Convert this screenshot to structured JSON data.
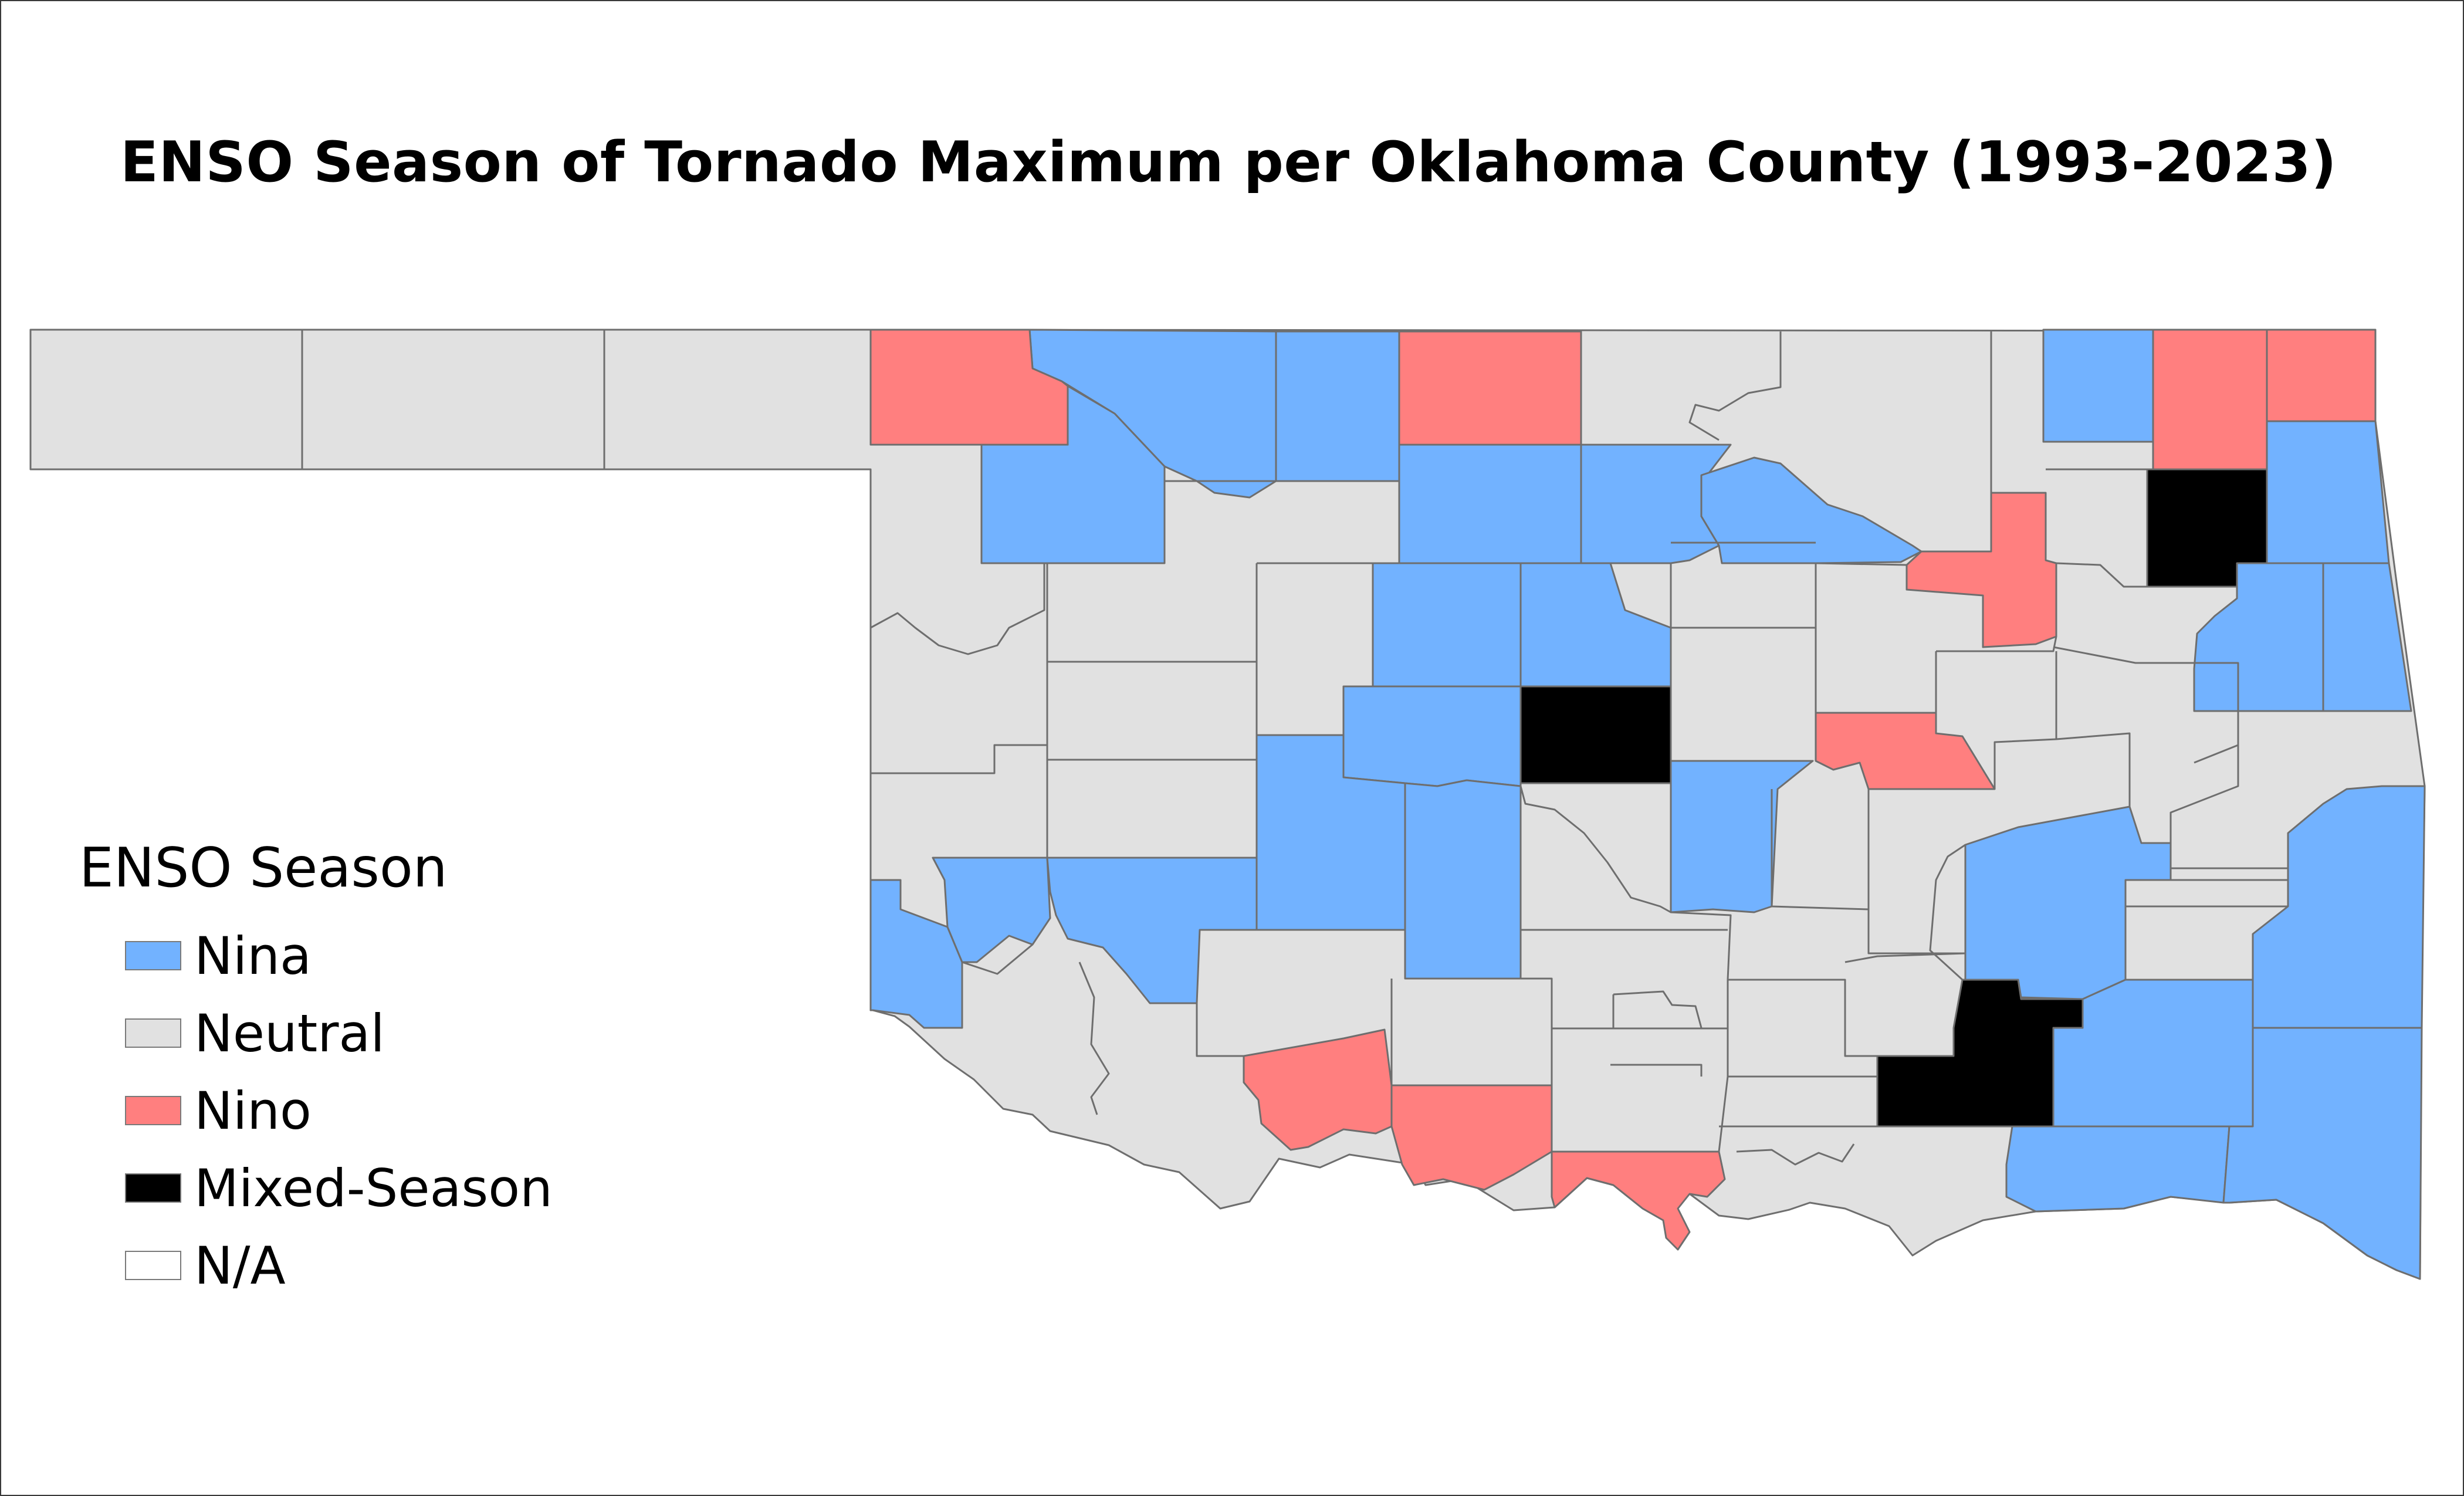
{
  "title": "ENSO Season of Tornado Maximum per Oklahoma County (1993-2023)",
  "legend": {
    "title": "ENSO Season",
    "items": [
      {
        "key": "nina",
        "label": "Nina",
        "color": "#72b2ff"
      },
      {
        "key": "neutral",
        "label": "Neutral",
        "color": "#e1e1e1"
      },
      {
        "key": "nino",
        "label": "Nino",
        "color": "#ff7f7f"
      },
      {
        "key": "mixed",
        "label": "Mixed-Season",
        "color": "#000000"
      },
      {
        "key": "na",
        "label": "N/A",
        "color": "#ffffff"
      }
    ]
  },
  "map": {
    "region": "Oklahoma",
    "county_border_color": "#6e6e6e",
    "category_counts_estimated": {
      "nina": 25,
      "neutral": 41,
      "nino": 9,
      "mixed": 3,
      "na": 0
    }
  }
}
